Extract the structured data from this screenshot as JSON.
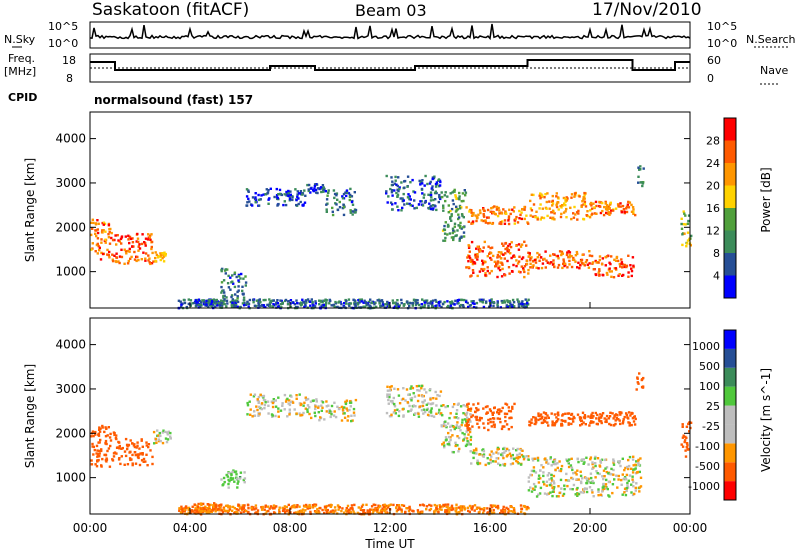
{
  "header": {
    "title": "Saskatoon (fitACF)",
    "beam": "Beam 03",
    "date": "17/Nov/2010"
  },
  "noise_panel": {
    "left_label": "N.Sky",
    "right_label": "N.Search",
    "tick_top": "10^5",
    "tick_bottom": "10^0"
  },
  "freq_panel": {
    "left_label_1": "Freq.",
    "left_label_2": "[MHz]",
    "right_label": "Nave",
    "left_ticks": [
      "18",
      "8"
    ],
    "right_ticks": [
      "60",
      "0"
    ]
  },
  "cpid": {
    "label": "CPID",
    "value": "normalsound (fast) 157"
  },
  "colors": {
    "power_scale": [
      "#0000ff",
      "#264f96",
      "#3c8c5a",
      "#50a03c",
      "#ffd200",
      "#ff9600",
      "#ff5a00",
      "#ff0000"
    ],
    "velocity_scale": [
      "#ff0000",
      "#ff5a00",
      "#ff9600",
      "#bebebe",
      "#bebebe",
      "#50c83c",
      "#3c8c5a",
      "#264f96",
      "#0000ff"
    ],
    "ground_scatter": "#bebebe"
  },
  "chart_data": [
    {
      "type": "heatmap",
      "name": "power",
      "xlabel": "",
      "ylabel": "Slant Range [km]",
      "xlim": [
        0,
        24
      ],
      "ylim": [
        180,
        4600
      ],
      "yticks": [
        1000,
        2000,
        3000,
        4000
      ],
      "grid": false,
      "colorbar": {
        "label": "Power [dB]",
        "min": 0,
        "max": 32,
        "ticks": [
          4,
          8,
          12,
          16,
          20,
          24,
          28
        ]
      },
      "regions": [
        {
          "t": [
            0.0,
            0.8
          ],
          "r": [
            1300,
            2200
          ],
          "level": 24
        },
        {
          "t": [
            0.8,
            2.5
          ],
          "r": [
            1200,
            1900
          ],
          "level": 26
        },
        {
          "t": [
            2.5,
            3.0
          ],
          "r": [
            1250,
            1500
          ],
          "level": 20
        },
        {
          "t": [
            4.2,
            5.2
          ],
          "r": [
            250,
            400
          ],
          "level": 6
        },
        {
          "t": [
            5.2,
            6.2
          ],
          "r": [
            400,
            1100
          ],
          "level": 8
        },
        {
          "t": [
            6.2,
            8.6
          ],
          "r": [
            2500,
            2900
          ],
          "level": 5
        },
        {
          "t": [
            8.6,
            9.4
          ],
          "r": [
            2800,
            3000
          ],
          "level": 5
        },
        {
          "t": [
            9.4,
            10.6
          ],
          "r": [
            2300,
            2900
          ],
          "level": 8
        },
        {
          "t": [
            11.8,
            14.0
          ],
          "r": [
            2400,
            3200
          ],
          "level": 6
        },
        {
          "t": [
            14.0,
            15.0
          ],
          "r": [
            1700,
            2900
          ],
          "level": 12
        },
        {
          "t": [
            15.0,
            17.5
          ],
          "r": [
            900,
            1700
          ],
          "level": 26
        },
        {
          "t": [
            15.0,
            17.5
          ],
          "r": [
            2100,
            2500
          ],
          "level": 24
        },
        {
          "t": [
            17.5,
            20.0
          ],
          "r": [
            1100,
            1500
          ],
          "level": 25
        },
        {
          "t": [
            17.5,
            20.0
          ],
          "r": [
            2200,
            2800
          ],
          "level": 22
        },
        {
          "t": [
            20.0,
            21.8
          ],
          "r": [
            900,
            1400
          ],
          "level": 26
        },
        {
          "t": [
            20.0,
            21.8
          ],
          "r": [
            2300,
            2600
          ],
          "level": 24
        },
        {
          "t": [
            21.8,
            22.1
          ],
          "r": [
            2900,
            3400
          ],
          "level": 8
        },
        {
          "t": [
            23.6,
            24.0
          ],
          "r": [
            1600,
            2400
          ],
          "level": 16
        },
        {
          "t": [
            3.5,
            17.5
          ],
          "r": [
            200,
            400
          ],
          "level": 7
        }
      ]
    },
    {
      "type": "heatmap",
      "name": "velocity",
      "xlabel": "Time UT",
      "ylabel": "Slant Range [km]",
      "xlim": [
        0,
        24
      ],
      "ylim": [
        180,
        4600
      ],
      "xticks": [
        "00:00",
        "04:00",
        "08:00",
        "12:00",
        "16:00",
        "20:00",
        "00:00"
      ],
      "yticks": [
        1000,
        2000,
        3000,
        4000
      ],
      "grid": false,
      "colorbar": {
        "label": "Velocity [m s^-1]",
        "ticks": [
          1000,
          500,
          100,
          25,
          -25,
          -100,
          -500,
          -1000
        ]
      },
      "regions": [
        {
          "t": [
            0.0,
            1.0
          ],
          "r": [
            1200,
            2200
          ],
          "vel": -300
        },
        {
          "t": [
            1.0,
            2.5
          ],
          "r": [
            1300,
            1900
          ],
          "vel": -300
        },
        {
          "t": [
            2.5,
            3.2
          ],
          "r": [
            1800,
            2100
          ],
          "vel": 0
        },
        {
          "t": [
            4.2,
            5.2
          ],
          "r": [
            250,
            450
          ],
          "vel": -100
        },
        {
          "t": [
            5.2,
            6.2
          ],
          "r": [
            800,
            1200
          ],
          "vel": 50
        },
        {
          "t": [
            6.2,
            8.6
          ],
          "r": [
            2400,
            2900
          ],
          "vel": 0
        },
        {
          "t": [
            8.6,
            10.6
          ],
          "r": [
            2300,
            2800
          ],
          "vel": 0
        },
        {
          "t": [
            11.8,
            14.0
          ],
          "r": [
            2400,
            3100
          ],
          "vel": 0
        },
        {
          "t": [
            14.0,
            15.2
          ],
          "r": [
            1600,
            2700
          ],
          "vel": 0
        },
        {
          "t": [
            15.2,
            17.5
          ],
          "r": [
            1300,
            1700
          ],
          "vel": 0
        },
        {
          "t": [
            15.0,
            17.0
          ],
          "r": [
            2100,
            2700
          ],
          "vel": -300
        },
        {
          "t": [
            17.5,
            22.0
          ],
          "r": [
            600,
            1500
          ],
          "vel": 0
        },
        {
          "t": [
            17.5,
            21.8
          ],
          "r": [
            2200,
            2500
          ],
          "vel": -300
        },
        {
          "t": [
            21.8,
            22.1
          ],
          "r": [
            3000,
            3400
          ],
          "vel": -300
        },
        {
          "t": [
            23.6,
            24.0
          ],
          "r": [
            1500,
            2300
          ],
          "vel": -300
        },
        {
          "t": [
            3.5,
            17.5
          ],
          "r": [
            200,
            420
          ],
          "vel": -100
        }
      ]
    }
  ]
}
